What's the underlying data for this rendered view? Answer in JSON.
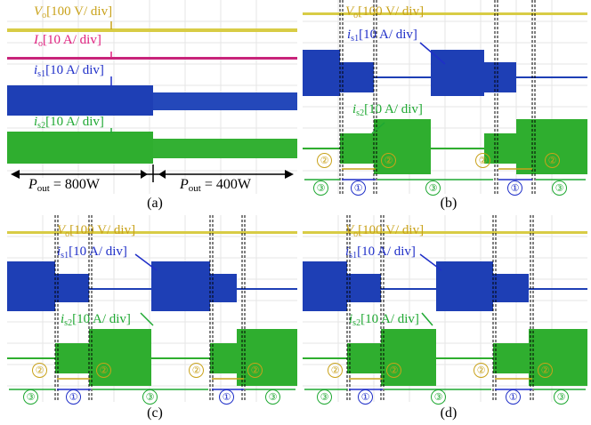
{
  "captions": {
    "a": "(a)",
    "b": "(b)",
    "c": "(c)",
    "d": "(d)"
  },
  "labels": {
    "vo": {
      "sym": "V",
      "sub": "o",
      "scale": "[100 V/ div]"
    },
    "io": {
      "sym": "I",
      "sub": "o",
      "scale": "[10 A/ div]"
    },
    "is1": {
      "sym": "i",
      "sub": "s1",
      "scale": "[10 A/ div]"
    },
    "is2": {
      "sym": "i",
      "sub": "s2",
      "scale": "[10 A/ div]"
    }
  },
  "power": {
    "left": {
      "sym": "P",
      "sub": "out",
      "value": " = 800W"
    },
    "right": {
      "sym": "P",
      "sub": "out",
      "value": " = 400W"
    }
  },
  "modes": {
    "m1": "①",
    "m2": "②",
    "m3": "③"
  },
  "colors": {
    "yellow": "#c9a21a",
    "magenta": "#e0207f",
    "blue": "#1f2fc8",
    "green": "#1fa832"
  }
}
